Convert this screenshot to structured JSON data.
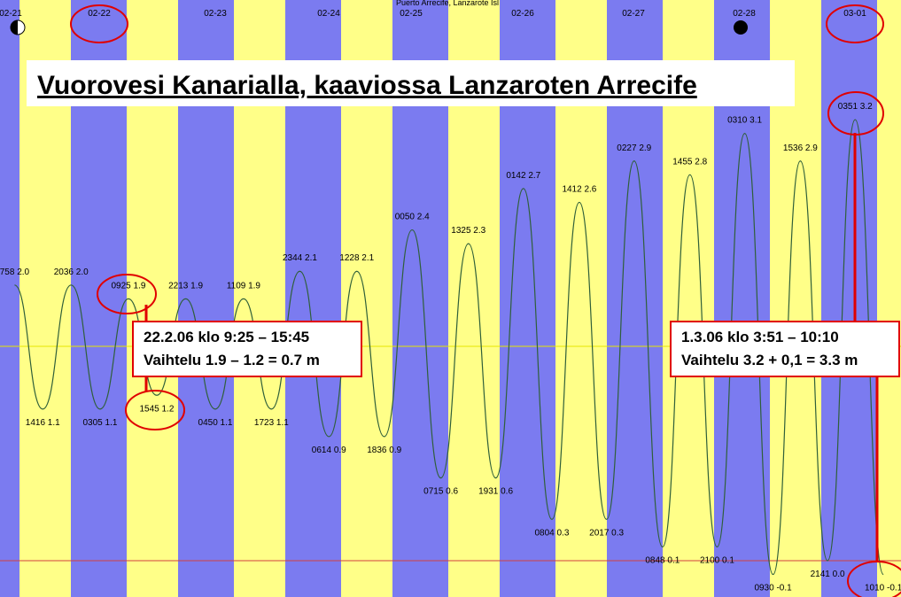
{
  "chart_data": {
    "type": "line",
    "title": "Vuorovesi Kanarialla, kaaviossa Lanzaroten Arrecife",
    "subtitle": "Puerto Arrecife, Lanzarote Isl",
    "days": [
      "02-21",
      "02-22",
      "02-23",
      "02-24",
      "02-25",
      "02-26",
      "02-27",
      "02-28",
      "03-01"
    ],
    "x": [
      "02-21 0758",
      "02-21 1416",
      "02-21 2036",
      "02-22 0305",
      "02-22 0925",
      "02-22 1545",
      "02-22 2213",
      "02-23 0450",
      "02-23 1109",
      "02-23 1723",
      "02-23 2344",
      "02-24 0614",
      "02-24 1228",
      "02-24 1836",
      "02-25 0050",
      "02-25 0715",
      "02-25 1325",
      "02-25 1931",
      "02-26 0142",
      "02-26 0804",
      "02-26 1412",
      "02-26 2017",
      "02-27 0227",
      "02-27 0848",
      "02-27 1455",
      "02-27 2100",
      "02-28 0310",
      "02-28 0930",
      "02-28 1536",
      "02-28 2141",
      "03-01 0351",
      "03-01 1010"
    ],
    "series": [
      {
        "color": "#2f5f3a",
        "values": [
          2.0,
          1.1,
          2.0,
          1.1,
          1.9,
          1.2,
          1.9,
          1.1,
          1.9,
          1.1,
          2.1,
          0.9,
          2.1,
          0.9,
          2.4,
          0.6,
          2.3,
          0.6,
          2.7,
          0.3,
          2.6,
          0.3,
          2.9,
          0.1,
          2.8,
          0.1,
          3.1,
          -0.1,
          2.9,
          0.0,
          3.2,
          -0.1
        ],
        "value_labels": [
          "758 2.0",
          "1416 1.1",
          "2036 2.0",
          "0305 1.1",
          "0925 1.9",
          "1545 1.2",
          "2213 1.9",
          "0450 1.1",
          "1109 1.9",
          "1723 1.1",
          "2344 2.1",
          "0614 0.9",
          "1228 2.1",
          "1836 0.9",
          "0050 2.4",
          "0715 0.6",
          "1325 2.3",
          "1931 0.6",
          "0142 2.7",
          "0804 0.3",
          "1412 2.6",
          "2017 0.3",
          "0227 2.9",
          "0848 0.1",
          "1455 2.8",
          "2100 0.1",
          "0310 3.1",
          "0930 -0.1",
          "1536 2.9",
          "2141 0.0",
          "0351 3.2",
          "1010 -0.1"
        ]
      }
    ],
    "annotations": [
      {
        "lines": [
          "22.2.06 klo 9:25 – 15:45",
          "Vaihtelu 1.9 – 1.2 = 0.7 m"
        ]
      },
      {
        "lines": [
          "1.3.06 klo 3:51 – 10:10",
          "Vaihtelu 3.2 + 0,1 = 3.3 m"
        ]
      }
    ]
  }
}
